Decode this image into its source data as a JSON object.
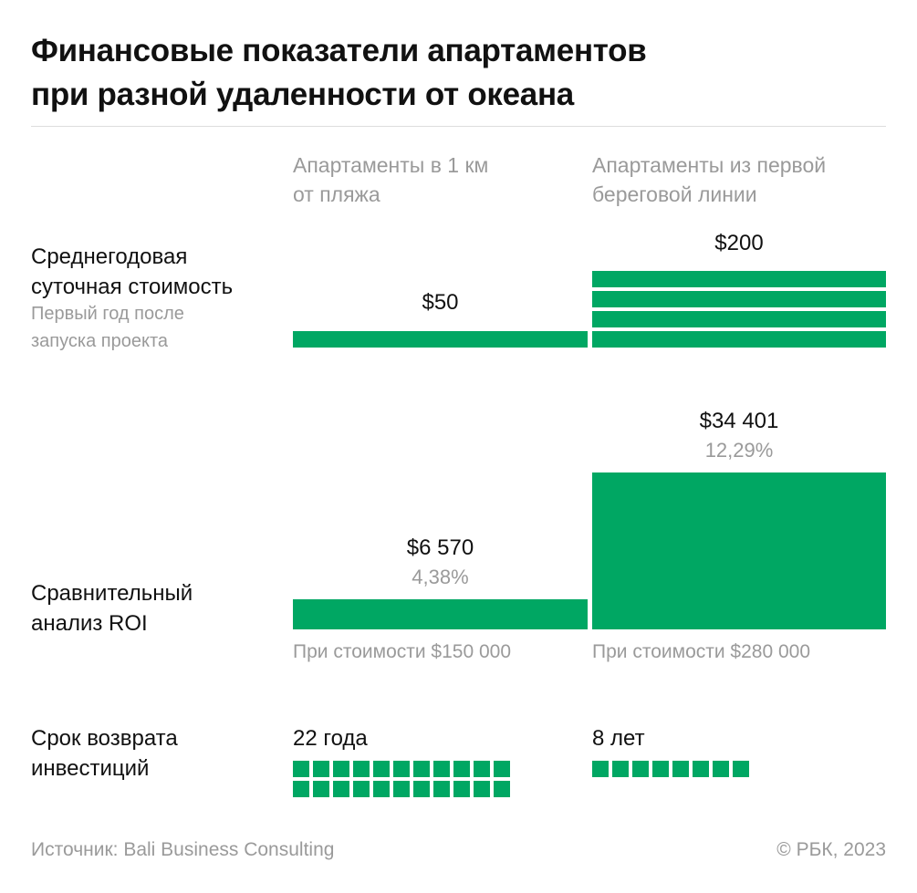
{
  "title_line1": "Финансовые показатели апартаментов",
  "title_line2": "при разной удаленности от океана",
  "columns": [
    {
      "line1": "Апартаменты в 1 км",
      "line2": "от пляжа"
    },
    {
      "line1": "Апартаменты из первой",
      "line2": "береговой линии"
    }
  ],
  "colors": {
    "bar": "#00a763",
    "text": "#111111",
    "muted": "#9a9a9a"
  },
  "chart_data": [
    {
      "type": "bar",
      "label_line1": "Среднегодовая",
      "label_line2": "суточная стоимость",
      "note_line1": "Первый год после",
      "note_line2": "запуска проекта",
      "unit_value": 50,
      "categories": [
        "Апартаменты в 1 км от пляжа",
        "Апартаменты из первой береговой линии"
      ],
      "values": [
        50,
        200
      ],
      "data_labels": [
        "$50",
        "$200"
      ]
    },
    {
      "type": "bar",
      "label_line1": "Сравнительный",
      "label_line2": "анализ ROI",
      "categories": [
        "Апартаменты в 1 км от пляжа",
        "Апартаменты из первой береговой линии"
      ],
      "values": [
        6570,
        34401
      ],
      "data_labels": [
        "$6 570",
        "$34 401"
      ],
      "percent_labels": [
        "4,38%",
        "12,29%"
      ],
      "percent_values": [
        4.38,
        12.29
      ],
      "captions": [
        "При стоимости $150 000",
        "При стоимости $280 000"
      ]
    },
    {
      "type": "bar",
      "label_line1": "Срок возврата",
      "label_line2": "инвестиций",
      "categories": [
        "Апартаменты в 1 км от пляжа",
        "Апартаменты из первой береговой линии"
      ],
      "values": [
        22,
        8
      ],
      "data_labels": [
        "22 года",
        "8 лет"
      ]
    }
  ],
  "footer": {
    "source": "Источник: Bali Business Consulting",
    "copyright": "© РБК, 2023"
  }
}
